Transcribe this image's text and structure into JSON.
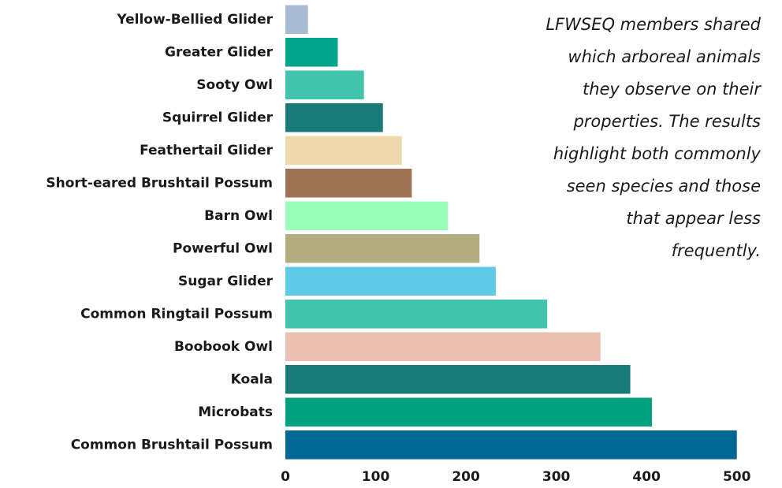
{
  "chart_data": {
    "type": "bar",
    "orientation": "horizontal",
    "categories": [
      "Yellow-Bellied Glider",
      "Greater Glider",
      "Sooty Owl",
      "Squirrel Glider",
      "Feathertail Glider",
      "Short-eared Brushtail Possum",
      "Barn Owl",
      "Powerful Owl",
      "Sugar Glider",
      "Common Ringtail Possum",
      "Boobook Owl",
      "Koala",
      "Microbats",
      "Common Brushtail Possum"
    ],
    "values": [
      25,
      58,
      87,
      108,
      129,
      140,
      180,
      215,
      233,
      290,
      349,
      382,
      406,
      500
    ],
    "colors": [
      "#a7bcd4",
      "#00a58a",
      "#41c3ac",
      "#1a7a7a",
      "#eed9ad",
      "#9e7356",
      "#9affb9",
      "#b2ae80",
      "#5ecae8",
      "#41c3ac",
      "#eac0b2",
      "#1a7a7a",
      "#00a17f",
      "#006893"
    ],
    "xlim": [
      0,
      550
    ],
    "xticks": [
      0,
      100,
      200,
      300,
      400,
      500
    ],
    "grid": false,
    "annotation": [
      "LFWSEQ members shared",
      "which arboreal animals",
      "they observe on their",
      "properties. The results",
      "highlight both commonly",
      "seen species and those",
      "that appear less",
      "frequently."
    ]
  }
}
